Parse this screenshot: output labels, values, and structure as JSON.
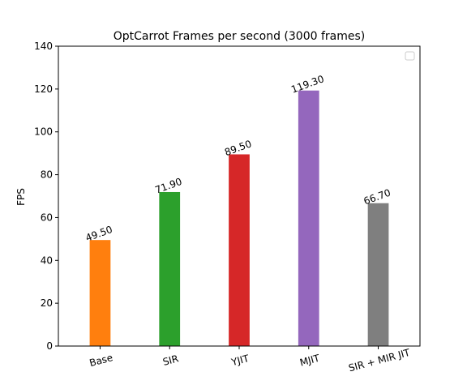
{
  "chart_data": {
    "type": "bar",
    "title": "OptCarrot Frames per second (3000 frames)",
    "xlabel": "",
    "ylabel": "FPS",
    "ylim": [
      0,
      140
    ],
    "yticks": [
      0,
      20,
      40,
      60,
      80,
      100,
      120,
      140
    ],
    "grid": false,
    "legend": {
      "placement": "top-right",
      "entries": []
    },
    "categories": [
      "Base",
      "SIR",
      "YJIT",
      "MJIT",
      "SIR + MIR JIT"
    ],
    "values": [
      49.5,
      71.9,
      89.5,
      119.3,
      66.7
    ],
    "data_labels": [
      "49.50",
      "71.90",
      "89.50",
      "119.30",
      "66.70"
    ],
    "colors": [
      "#ff7f0e",
      "#2ca02c",
      "#d62728",
      "#9467bd",
      "#7f7f7f"
    ]
  }
}
